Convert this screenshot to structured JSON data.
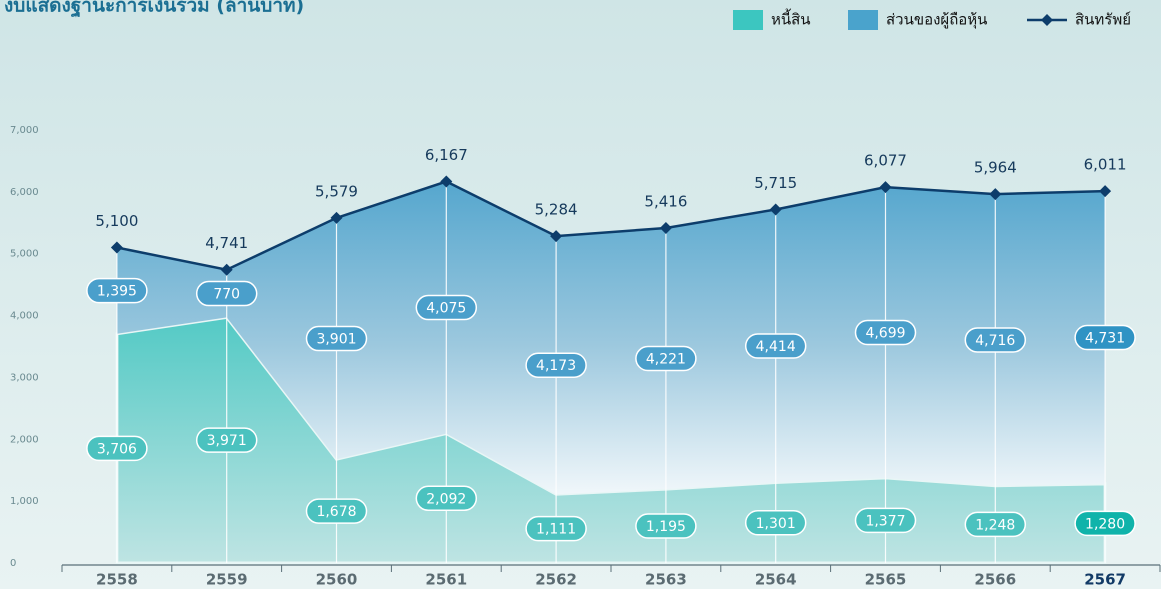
{
  "chart_data": {
    "type": "stacked_area",
    "title": "งบแสดงฐานะการเงินรวม (ล้านบาท)",
    "categories": [
      "2558",
      "2559",
      "2560",
      "2561",
      "2562",
      "2563",
      "2564",
      "2565",
      "2566",
      "2567"
    ],
    "series": [
      {
        "name": "หนี้สิน",
        "type": "area",
        "color": "#3cc6c0",
        "values": [
          3706,
          3971,
          1678,
          2092,
          1111,
          1195,
          1301,
          1377,
          1248,
          1280
        ],
        "value_labels": [
          "3,706",
          "3,971",
          "1,678",
          "2,092",
          "1,111",
          "1,195",
          "1,301",
          "1,377",
          "1,248",
          "1,280"
        ]
      },
      {
        "name": "ส่วนของผู้ถือหุ้น",
        "type": "area",
        "color": "#4aa3cc",
        "values": [
          1395,
          770,
          3901,
          4075,
          4173,
          4221,
          4414,
          4699,
          4716,
          4731
        ],
        "value_labels": [
          "1,395",
          "770",
          "3,901",
          "4,075",
          "4,173",
          "4,221",
          "4,414",
          "4,699",
          "4,716",
          "4,731"
        ]
      },
      {
        "name": "สินทรัพย์",
        "type": "line",
        "color": "#0d3d6b",
        "values": [
          5100,
          4741,
          5579,
          6167,
          5284,
          5416,
          5715,
          6077,
          5964,
          6011
        ],
        "value_labels": [
          "5,100",
          "4,741",
          "5,579",
          "6,167",
          "5,284",
          "5,416",
          "5,715",
          "6,077",
          "5,964",
          "6,011"
        ]
      }
    ],
    "ylim": [
      0,
      7000
    ],
    "yticks": [
      0,
      {
        "value": 1000,
        "label": "1,000"
      },
      {
        "value": 2000,
        "label": "2,000"
      },
      {
        "value": 3000,
        "label": "3,000"
      },
      {
        "value": 4000,
        "label": "4,000"
      },
      {
        "value": 5000,
        "label": "5,000"
      },
      {
        "value": 6000,
        "label": "6,000"
      },
      {
        "value": 7000,
        "label": "7,000"
      }
    ]
  }
}
